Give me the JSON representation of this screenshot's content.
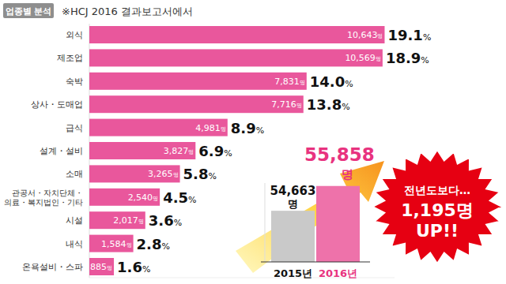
{
  "chart_data": [
    {
      "type": "bar",
      "orientation": "horizontal",
      "title": "업종별 분석",
      "subtitle": "※HCJ 2016 결과보고서에서",
      "categories": [
        "외식",
        "제조업",
        "숙박",
        "상사・도매업",
        "급식",
        "설계・설비",
        "소매",
        "관공서・자치단체・\n의료・복지법인・기타",
        "시설",
        "내식",
        "온욕설비・스파"
      ],
      "values": [
        10643,
        10569,
        7831,
        7716,
        4981,
        3827,
        3265,
        2540,
        2017,
        1584,
        885
      ],
      "value_labels": [
        "10,643명",
        "10,569명",
        "7,831명",
        "7,716명",
        "4,981명",
        "3,827명",
        "3,265명",
        "2,540명",
        "2,017명",
        "1,584명",
        "885명"
      ],
      "shares": [
        19.1,
        18.9,
        14.0,
        13.8,
        8.9,
        6.9,
        5.8,
        4.5,
        3.6,
        2.8,
        1.6
      ],
      "share_labels": [
        "19.1%",
        "18.9%",
        "14.0%",
        "13.8%",
        "8.9%",
        "6.9%",
        "5.8%",
        "4.5%",
        "3.6%",
        "2.8%",
        "1.6%"
      ],
      "color": "#e9579c",
      "xlim": [
        0,
        11000
      ],
      "tick_labels": false,
      "grid": false,
      "data_labels": true
    },
    {
      "type": "bar",
      "categories": [
        "2015년",
        "2016년"
      ],
      "values": [
        54663,
        55858
      ],
      "value_labels": [
        "54,663명",
        "55,858명"
      ],
      "colors": [
        "#c9c9c9",
        "#ee72aa"
      ],
      "ylim": [
        52200,
        56000
      ],
      "tick_labels": "x",
      "grid": false,
      "data_labels": true,
      "annotations": [
        "전년도보다…",
        "1,195명",
        "UP!!"
      ]
    }
  ]
}
